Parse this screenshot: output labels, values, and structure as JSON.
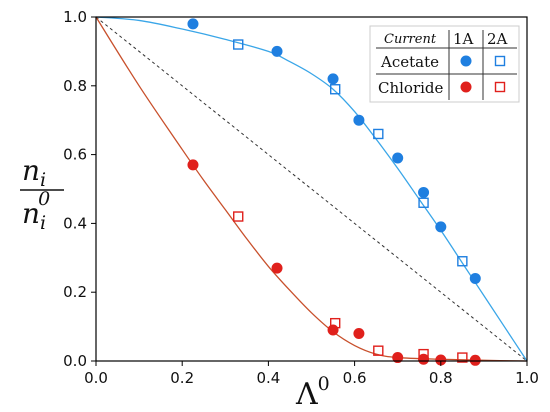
{
  "chart_data": {
    "type": "scatter",
    "xlabel": "Λ",
    "xlabel_sup": "0",
    "ylabel_num": "n",
    "ylabel_num_sub": "i",
    "ylabel_den": "n",
    "ylabel_den_sub": "i",
    "ylabel_den_sup": "0",
    "xlim": [
      0.0,
      1.0
    ],
    "ylim": [
      0.0,
      1.0
    ],
    "xticks": [
      "0.0",
      "0.2",
      "0.4",
      "0.6",
      "0.8",
      "1.0"
    ],
    "yticks": [
      "0.0",
      "0.2",
      "0.4",
      "0.6",
      "0.8",
      "1.0"
    ],
    "legend": {
      "position": "top-right",
      "header": "Current",
      "columns": [
        "1A",
        "2A"
      ],
      "rows": [
        "Acetate",
        "Chloride"
      ]
    },
    "colors": {
      "acetate": "#1f7fe0",
      "acetate_curve": "#3aa6e8",
      "chloride": "#e0201c",
      "chloride_curve": "#c8502c",
      "diagonal": "#333333"
    },
    "series": [
      {
        "name": "Acetate",
        "current": "1A",
        "marker": "filled-circle",
        "x": [
          0.225,
          0.42,
          0.55,
          0.61,
          0.7,
          0.76,
          0.8,
          0.88
        ],
        "y": [
          0.98,
          0.9,
          0.82,
          0.7,
          0.59,
          0.49,
          0.39,
          0.24
        ]
      },
      {
        "name": "Acetate",
        "current": "2A",
        "marker": "open-square",
        "x": [
          0.33,
          0.555,
          0.655,
          0.76,
          0.85
        ],
        "y": [
          0.92,
          0.79,
          0.66,
          0.46,
          0.29
        ]
      },
      {
        "name": "Chloride",
        "current": "1A",
        "marker": "filled-circle",
        "x": [
          0.225,
          0.42,
          0.55,
          0.61,
          0.7,
          0.76,
          0.8,
          0.88
        ],
        "y": [
          0.57,
          0.27,
          0.09,
          0.08,
          0.01,
          0.005,
          0.003,
          0.002
        ]
      },
      {
        "name": "Chloride",
        "current": "2A",
        "marker": "open-square",
        "x": [
          0.33,
          0.555,
          0.655,
          0.76,
          0.85
        ],
        "y": [
          0.42,
          0.11,
          0.03,
          0.02,
          0.01
        ]
      }
    ],
    "fit_curves": [
      {
        "for": "Acetate",
        "x": [
          0.0,
          0.1,
          0.2,
          0.3,
          0.4,
          0.45,
          0.5,
          0.55,
          0.6,
          0.65,
          0.7,
          0.75,
          0.8,
          0.85,
          0.9,
          0.95,
          1.0
        ],
        "y": [
          1.0,
          0.99,
          0.965,
          0.935,
          0.9,
          0.87,
          0.835,
          0.79,
          0.725,
          0.645,
          0.56,
          0.47,
          0.38,
          0.285,
          0.19,
          0.095,
          0.0
        ]
      },
      {
        "for": "Chloride",
        "x": [
          0.0,
          0.1,
          0.2,
          0.25,
          0.3,
          0.35,
          0.4,
          0.45,
          0.5,
          0.55,
          0.6,
          0.65,
          0.7,
          0.8,
          0.9,
          1.0
        ],
        "y": [
          1.0,
          0.8,
          0.615,
          0.525,
          0.44,
          0.355,
          0.275,
          0.205,
          0.14,
          0.085,
          0.045,
          0.02,
          0.01,
          0.005,
          0.002,
          0.0
        ]
      }
    ],
    "reference_line": {
      "style": "dashed",
      "x": [
        0.0,
        1.0
      ],
      "y": [
        1.0,
        0.0
      ]
    }
  }
}
